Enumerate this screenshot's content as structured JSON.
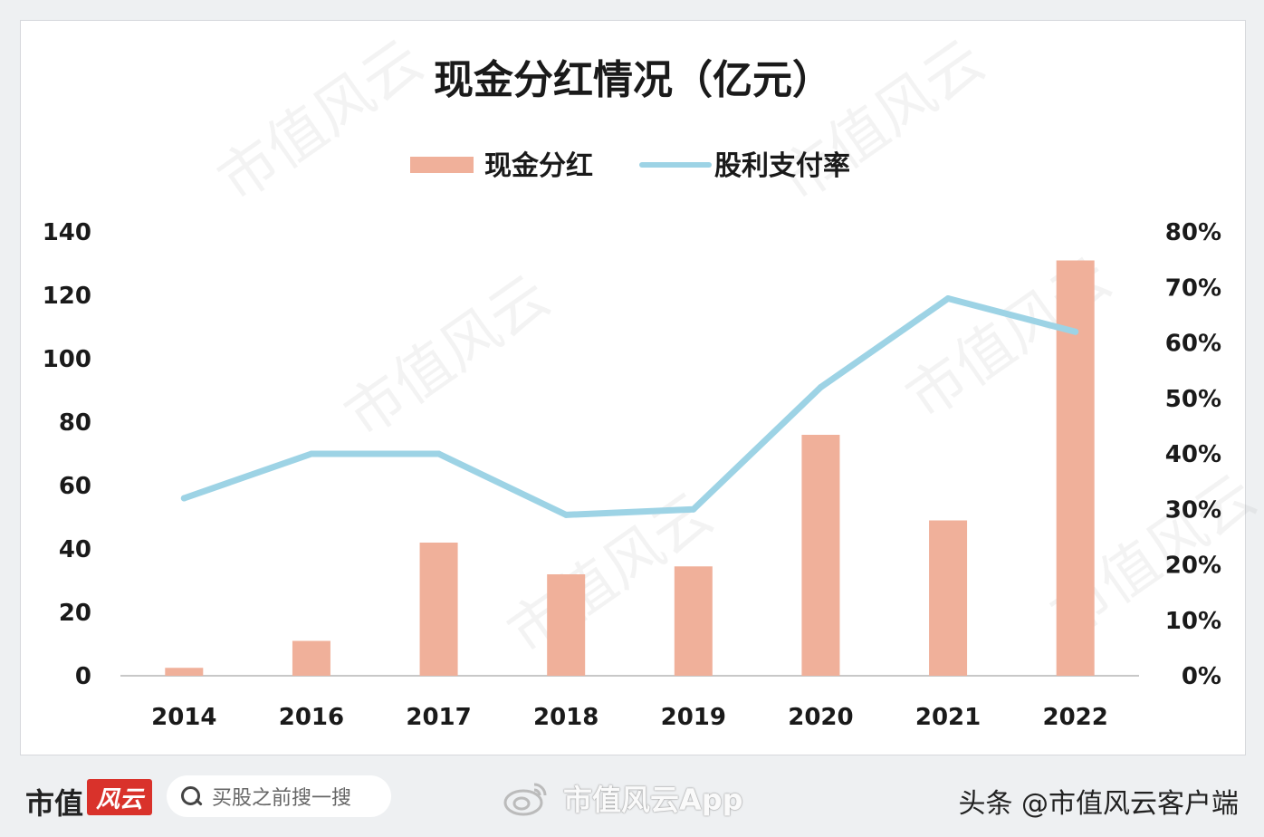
{
  "chart_data": {
    "type": "bar",
    "title": "现金分红情况（亿元）",
    "categories": [
      "2014",
      "2016",
      "2017",
      "2018",
      "2019",
      "2020",
      "2021",
      "2022"
    ],
    "series": [
      {
        "name": "现金分红",
        "type": "bar",
        "axis": "left",
        "color": "#f0b09a",
        "values": [
          2.5,
          11,
          42,
          32,
          34.5,
          76,
          49,
          131
        ]
      },
      {
        "name": "股利支付率",
        "type": "line",
        "axis": "right",
        "color": "#9dd3e5",
        "values": [
          32,
          40,
          40,
          29,
          30,
          52,
          68,
          62
        ]
      }
    ],
    "y_left": {
      "ylim": [
        0,
        140
      ],
      "ticks": [
        "0",
        "20",
        "40",
        "60",
        "80",
        "100",
        "120",
        "140"
      ]
    },
    "y_right": {
      "ylim": [
        0,
        80
      ],
      "ticks": [
        "0%",
        "10%",
        "20%",
        "30%",
        "40%",
        "50%",
        "60%",
        "70%",
        "80%"
      ]
    },
    "legend_position": "top-center",
    "grid": false
  },
  "watermark": "市值风云",
  "footer": {
    "brand": "市值",
    "brand_logo": "风云",
    "search_placeholder": "买股之前搜一搜",
    "weibo_label": "市值风云App",
    "toutiao_label": "头条 @市值风云客户端"
  }
}
